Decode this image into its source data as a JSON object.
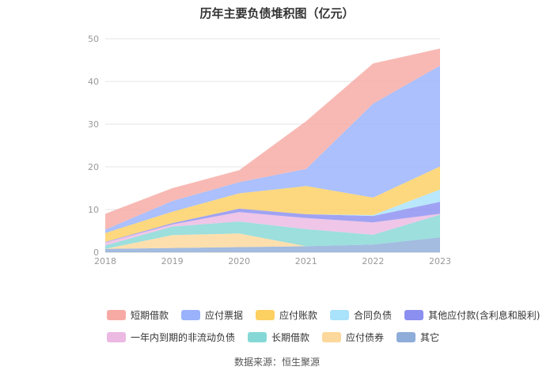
{
  "title": "历年主要负债堆积图（亿元）",
  "source": "数据来源：恒生聚源",
  "chart_data": {
    "type": "area",
    "stacked": true,
    "x": [
      "2018",
      "2019",
      "2020",
      "2021",
      "2022",
      "2023"
    ],
    "ylim": [
      0,
      50
    ],
    "yticks": [
      0,
      10,
      20,
      30,
      40,
      50
    ],
    "grid": true,
    "legend_position": "bottom",
    "series": [
      {
        "name": "其它",
        "color": "#8fadd9",
        "values": [
          0.8,
          1.0,
          1.2,
          1.4,
          1.8,
          3.5
        ]
      },
      {
        "name": "应付债券",
        "color": "#fcd89c",
        "values": [
          0.0,
          3.0,
          3.2,
          0.0,
          0.0,
          0.0
        ]
      },
      {
        "name": "长期借款",
        "color": "#86d8d6",
        "values": [
          0.8,
          2.0,
          2.8,
          4.0,
          2.3,
          5.3
        ]
      },
      {
        "name": "一年内到期的非流动负债",
        "color": "#ebb9e2",
        "values": [
          0.7,
          0.5,
          2.2,
          2.6,
          2.9,
          0.2
        ]
      },
      {
        "name": "其他应付款(含利息和股利)",
        "color": "#8b8ff0",
        "values": [
          0.1,
          0.3,
          0.8,
          0.9,
          1.5,
          2.8
        ]
      },
      {
        "name": "合同负债",
        "color": "#a9e2fb",
        "values": [
          0.0,
          0.0,
          0.0,
          0.0,
          0.2,
          2.9
        ]
      },
      {
        "name": "应付账款",
        "color": "#fdd062",
        "values": [
          2.1,
          2.7,
          3.6,
          6.6,
          4.1,
          5.4
        ]
      },
      {
        "name": "应付票据",
        "color": "#99b2fb",
        "values": [
          0.8,
          2.5,
          2.6,
          4.0,
          22.0,
          23.6
        ]
      },
      {
        "name": "短期借款",
        "color": "#f7aaa4",
        "values": [
          3.7,
          3.0,
          2.8,
          11.2,
          9.4,
          4.0
        ]
      }
    ]
  },
  "legend_rows": [
    [
      {
        "label": "短期借款",
        "color": "#f7aaa4"
      },
      {
        "label": "应付票据",
        "color": "#99b2fb"
      },
      {
        "label": "应付账款",
        "color": "#fdd062"
      },
      {
        "label": "合同负债",
        "color": "#a9e2fb"
      },
      {
        "label": "其他应付款(含利息和股利)",
        "color": "#8b8ff0"
      }
    ],
    [
      {
        "label": "一年内到期的非流动负债",
        "color": "#ebb9e2"
      },
      {
        "label": "长期借款",
        "color": "#86d8d6"
      },
      {
        "label": "应付债券",
        "color": "#fcd89c"
      },
      {
        "label": "其它",
        "color": "#8fadd9"
      }
    ]
  ]
}
